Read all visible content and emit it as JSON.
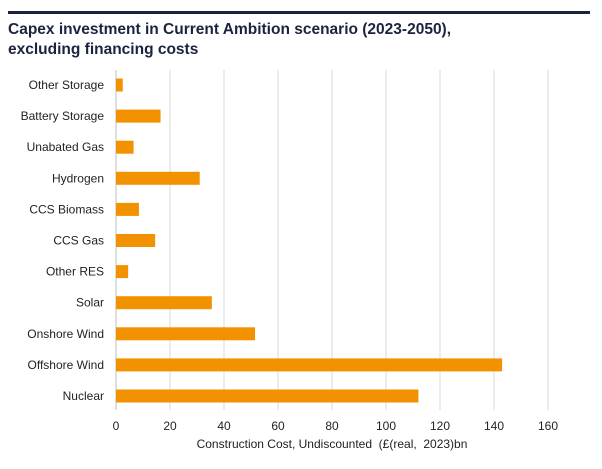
{
  "chart_data": {
    "type": "bar",
    "orientation": "horizontal",
    "title_lines": [
      "Capex investment in Current Ambition scenario (2023-2050),",
      "excluding financing costs"
    ],
    "categories": [
      "Other Storage",
      "Battery Storage",
      "Unabated Gas",
      "Hydrogen",
      "CCS Biomass",
      "CCS Gas",
      "Other RES",
      "Solar",
      "Onshore Wind",
      "Offshore Wind",
      "Nuclear"
    ],
    "values": [
      2.5,
      16.5,
      6.5,
      31,
      8.5,
      14.5,
      4.5,
      35.5,
      51.5,
      143,
      112
    ],
    "xlabel": "Construction Cost, Undiscounted  (£(real,  2023)bn",
    "xlim": [
      0,
      160
    ],
    "xticks": [
      0,
      20,
      40,
      60,
      80,
      100,
      120,
      140,
      160
    ],
    "grid": "vertical",
    "bar_color": "#f39200",
    "grid_color": "#d9d9d9"
  }
}
